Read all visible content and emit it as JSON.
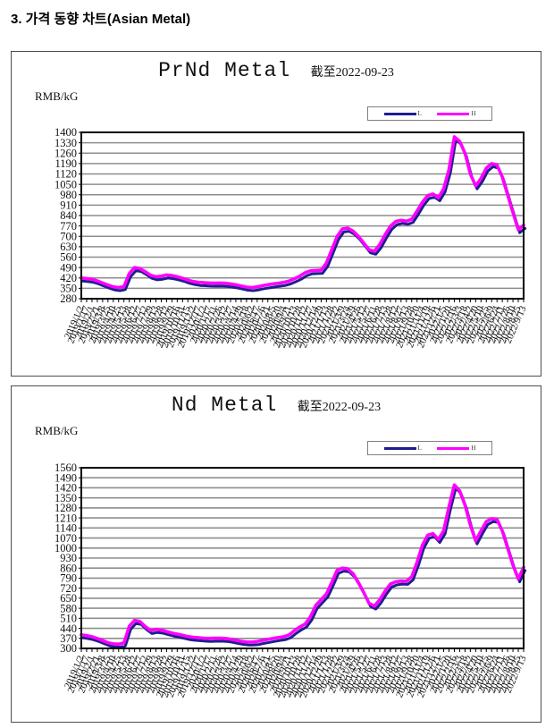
{
  "page": {
    "heading": "3. 가격 동향 차트(Asian Metal)"
  },
  "chart_data": [
    {
      "type": "line",
      "title": "PrNd Metal",
      "asof_label": "截至2022-09-23",
      "unit": "RMB/kG",
      "grid": true,
      "legend_position": "top-right",
      "legend": [
        {
          "label": "L",
          "color": "#1e1e8f"
        },
        {
          "label": "H",
          "color": "#ff00ff"
        }
      ],
      "ylim": [
        280,
        1400
      ],
      "ytick_step": 70,
      "yticks": [
        1400,
        1330,
        1260,
        1190,
        1120,
        1050,
        980,
        910,
        840,
        770,
        700,
        630,
        560,
        490,
        420,
        350,
        280
      ],
      "x": [
        "2019/1/2",
        "2019/1/17",
        "2019/2/1",
        "2019/2/21",
        "2019/3/8",
        "2019/3/25",
        "2019/4/10",
        "2019/4/25",
        "2019/5/13",
        "2019/5/28",
        "2019/6/12",
        "2019/6/27",
        "2019/7/12",
        "2019/7/29",
        "2019/8/13",
        "2019/8/28",
        "2019/9/12",
        "2019/9/29",
        "2019/10/16",
        "2019/10/31",
        "2019/11/15",
        "2019/12/2",
        "2019/12/17",
        "2020/1/2",
        "2020/1/17",
        "2020/2/11",
        "2020/2/26",
        "2020/3/12",
        "2020/3/27",
        "2020/4/14",
        "2020/4/29",
        "2020/5/18",
        "2020/6/2",
        "2020/6/17",
        "2020/7/6",
        "2020/7/21",
        "2020/8/5",
        "2020/8/20",
        "2020/9/4",
        "2020/9/21",
        "2020/10/13",
        "2020/10/28",
        "2020/11/12",
        "2020/11/27",
        "2020/12/14",
        "2020/12/29",
        "2021/1/13",
        "2021/1/28",
        "2021/2/22",
        "2021/3/9",
        "2021/3/24",
        "2021/4/9",
        "2021/4/26",
        "2021/5/12",
        "2021/5/27",
        "2021/6/11",
        "2021/6/28",
        "2021/7/13",
        "2021/7/28",
        "2021/8/12",
        "2021/8/27",
        "2021/9/13",
        "2021/9/28",
        "2021/10/20",
        "2021/11/4",
        "2021/11/19",
        "2021/12/6",
        "2021/12/21",
        "2022/1/5",
        "2022/1/20",
        "2022/2/16",
        "2022/3/3",
        "2022/3/18",
        "2022/4/2",
        "2022/4/20",
        "2022/5/10",
        "2022/5/25",
        "2022/6/9",
        "2022/6/24",
        "2022/7/11",
        "2022/7/26",
        "2022/8/10",
        "2022/8/25",
        "2022/9/13"
      ],
      "series": [
        {
          "name": "L",
          "color": "#1e1e8f",
          "values": [
            410,
            406,
            401,
            390,
            376,
            362,
            350,
            345,
            352,
            440,
            480,
            473,
            452,
            428,
            418,
            422,
            430,
            426,
            418,
            408,
            395,
            386,
            380,
            378,
            376,
            375,
            376,
            374,
            370,
            364,
            356,
            348,
            345,
            350,
            358,
            364,
            370,
            375,
            380,
            390,
            405,
            422,
            445,
            458,
            460,
            462,
            510,
            600,
            690,
            740,
            745,
            725,
            690,
            645,
            600,
            590,
            635,
            700,
            758,
            790,
            798,
            792,
            805,
            860,
            920,
            965,
            975,
            950,
            1010,
            1140,
            1360,
            1330,
            1250,
            1110,
            1030,
            1080,
            1150,
            1180,
            1170,
            1090,
            970,
            850,
            735,
            765
          ]
        },
        {
          "name": "H",
          "color": "#ff00ff",
          "values": [
            420,
            416,
            411,
            400,
            386,
            372,
            360,
            355,
            362,
            450,
            490,
            483,
            462,
            438,
            428,
            432,
            440,
            436,
            428,
            418,
            405,
            396,
            390,
            388,
            386,
            385,
            386,
            384,
            380,
            374,
            366,
            358,
            355,
            360,
            368,
            374,
            380,
            385,
            390,
            400,
            415,
            432,
            455,
            468,
            470,
            472,
            520,
            610,
            700,
            750,
            755,
            735,
            700,
            655,
            610,
            600,
            645,
            710,
            768,
            800,
            808,
            802,
            815,
            870,
            930,
            975,
            985,
            960,
            1020,
            1150,
            1370,
            1340,
            1260,
            1120,
            1040,
            1090,
            1160,
            1190,
            1180,
            1100,
            980,
            860,
            745,
            775
          ]
        }
      ]
    },
    {
      "type": "line",
      "title": "Nd Metal",
      "asof_label": "截至2022-09-23",
      "unit": "RMB/kG",
      "grid": true,
      "legend_position": "top-right",
      "legend": [
        {
          "label": "L",
          "color": "#1e1e8f"
        },
        {
          "label": "H",
          "color": "#ff00ff"
        }
      ],
      "ylim": [
        300,
        1560
      ],
      "ytick_step": 70,
      "yticks": [
        1560,
        1490,
        1420,
        1350,
        1280,
        1210,
        1140,
        1070,
        1000,
        930,
        860,
        790,
        720,
        650,
        580,
        510,
        440,
        370,
        300
      ],
      "x": [
        "2019/1/2",
        "2019/1/17",
        "2019/2/1",
        "2019/2/21",
        "2019/3/8",
        "2019/3/25",
        "2019/4/10",
        "2019/4/25",
        "2019/5/13",
        "2019/5/28",
        "2019/6/12",
        "2019/6/27",
        "2019/7/12",
        "2019/7/29",
        "2019/8/13",
        "2019/8/28",
        "2019/9/12",
        "2019/9/29",
        "2019/10/16",
        "2019/10/31",
        "2019/11/15",
        "2019/12/2",
        "2019/12/17",
        "2020/1/2",
        "2020/1/17",
        "2020/2/11",
        "2020/2/26",
        "2020/3/12",
        "2020/3/27",
        "2020/4/14",
        "2020/4/29",
        "2020/5/18",
        "2020/6/2",
        "2020/6/17",
        "2020/7/6",
        "2020/7/21",
        "2020/8/5",
        "2020/8/20",
        "2020/9/4",
        "2020/9/21",
        "2020/10/13",
        "2020/10/28",
        "2020/11/12",
        "2020/11/27",
        "2020/12/14",
        "2020/12/29",
        "2021/1/13",
        "2021/1/28",
        "2021/2/22",
        "2021/3/9",
        "2021/3/24",
        "2021/4/9",
        "2021/4/26",
        "2021/5/12",
        "2021/5/27",
        "2021/6/11",
        "2021/6/28",
        "2021/7/13",
        "2021/7/28",
        "2021/8/12",
        "2021/8/27",
        "2021/9/13",
        "2021/9/28",
        "2021/10/20",
        "2021/11/4",
        "2021/11/19",
        "2021/12/6",
        "2021/12/21",
        "2022/1/5",
        "2022/1/20",
        "2022/2/16",
        "2022/3/3",
        "2022/3/18",
        "2022/4/2",
        "2022/4/20",
        "2022/5/10",
        "2022/5/25",
        "2022/6/9",
        "2022/6/24",
        "2022/7/11",
        "2022/7/26",
        "2022/8/10",
        "2022/8/25",
        "2022/9/13"
      ],
      "series": [
        {
          "name": "L",
          "color": "#1e1e8f",
          "values": [
            385,
            380,
            372,
            360,
            345,
            330,
            322,
            320,
            328,
            445,
            485,
            478,
            442,
            415,
            422,
            418,
            408,
            398,
            390,
            382,
            373,
            368,
            365,
            362,
            360,
            361,
            362,
            360,
            355,
            347,
            340,
            335,
            334,
            338,
            346,
            353,
            360,
            366,
            372,
            385,
            415,
            440,
            460,
            510,
            590,
            630,
            670,
            750,
            835,
            850,
            845,
            810,
            750,
            680,
            605,
            585,
            630,
            690,
            740,
            755,
            760,
            758,
            790,
            890,
            1010,
            1080,
            1090,
            1050,
            1110,
            1280,
            1430,
            1390,
            1290,
            1150,
            1040,
            1110,
            1175,
            1195,
            1190,
            1110,
            990,
            870,
            775,
            855
          ]
        },
        {
          "name": "H",
          "color": "#ff00ff",
          "values": [
            395,
            390,
            382,
            370,
            355,
            340,
            332,
            330,
            338,
            455,
            495,
            488,
            452,
            425,
            432,
            428,
            418,
            408,
            400,
            392,
            383,
            378,
            375,
            372,
            370,
            371,
            372,
            370,
            365,
            357,
            350,
            345,
            344,
            348,
            356,
            363,
            370,
            376,
            382,
            395,
            425,
            450,
            470,
            520,
            600,
            640,
            680,
            760,
            845,
            860,
            855,
            820,
            760,
            690,
            615,
            595,
            640,
            700,
            750,
            765,
            770,
            768,
            800,
            900,
            1020,
            1090,
            1100,
            1060,
            1120,
            1290,
            1440,
            1400,
            1300,
            1160,
            1050,
            1120,
            1185,
            1205,
            1200,
            1120,
            1000,
            880,
            785,
            865
          ]
        }
      ]
    }
  ]
}
